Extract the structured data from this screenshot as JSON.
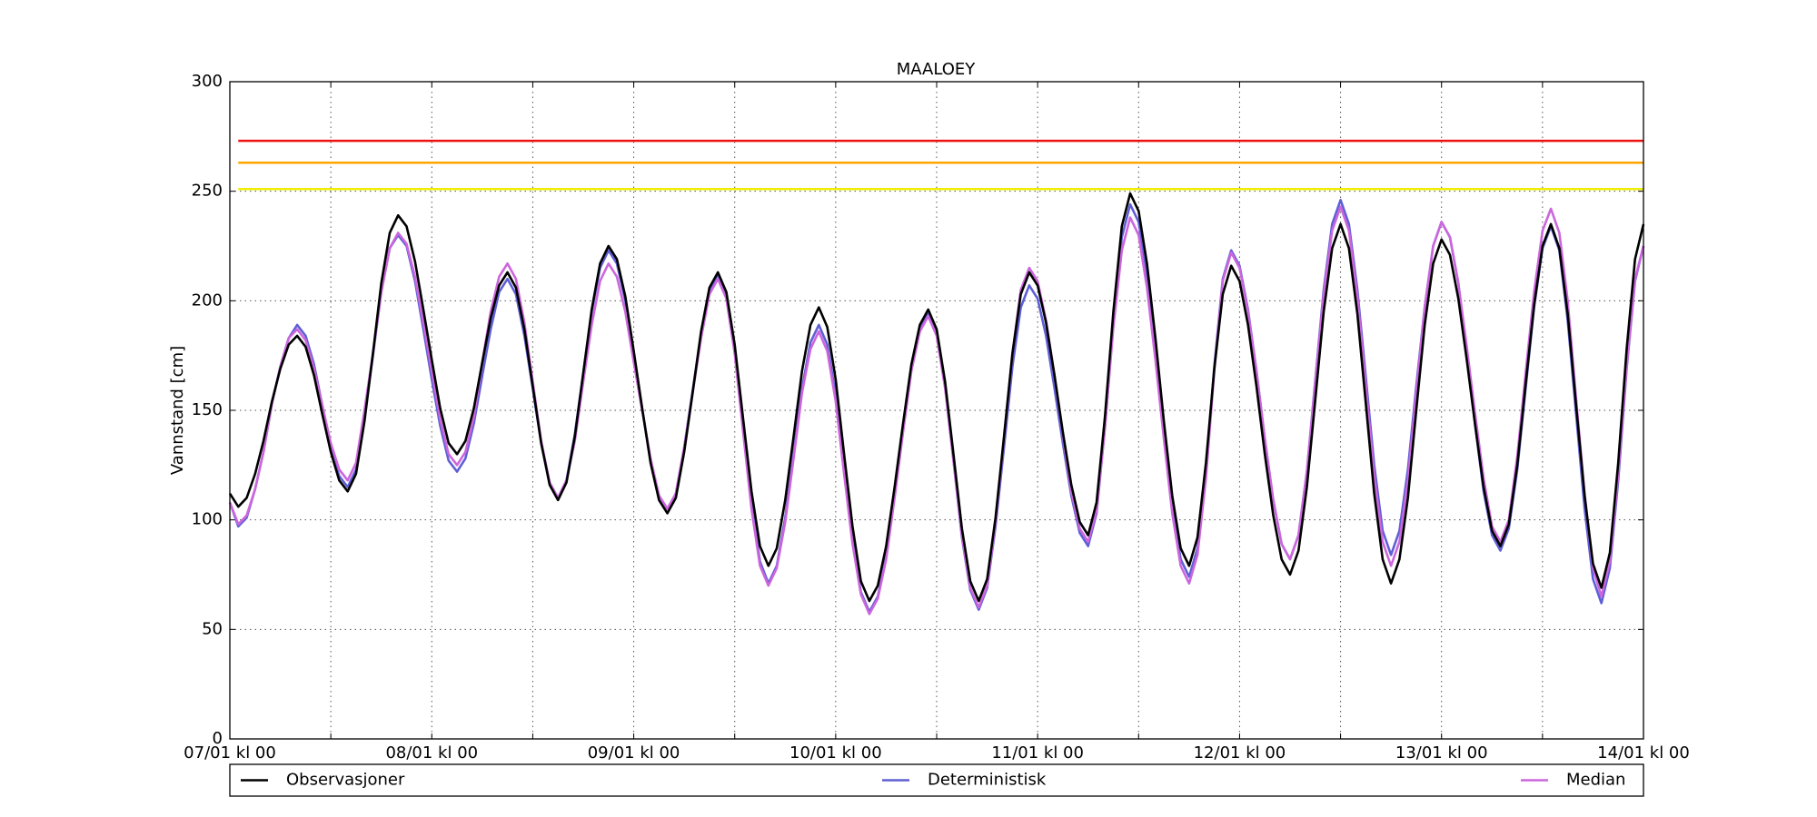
{
  "chart_data": {
    "type": "line",
    "title": "MAALOEY",
    "y_label": "Vannstand [cm]",
    "x": [
      0,
      1,
      2,
      3,
      4,
      5,
      6,
      7,
      8,
      9,
      10,
      11,
      12,
      13,
      14,
      15,
      16,
      17,
      18,
      19,
      20,
      21,
      22,
      23,
      24,
      25,
      26,
      27,
      28,
      29,
      30,
      31,
      32,
      33,
      34,
      35,
      36,
      37,
      38,
      39,
      40,
      41,
      42,
      43,
      44,
      45,
      46,
      47,
      48,
      49,
      50,
      51,
      52,
      53,
      54,
      55,
      56,
      57,
      58,
      59,
      60,
      61,
      62,
      63,
      64,
      65,
      66,
      67,
      68,
      69,
      70,
      71,
      72,
      73,
      74,
      75,
      76,
      77,
      78,
      79,
      80,
      81,
      82,
      83,
      84,
      85,
      86,
      87,
      88,
      89,
      90,
      91,
      92,
      93,
      94,
      95,
      96,
      97,
      98,
      99,
      100,
      101,
      102,
      103,
      104,
      105,
      106,
      107,
      108,
      109,
      110,
      111,
      112,
      113,
      114,
      115,
      116,
      117,
      118,
      119,
      120,
      121,
      122,
      123,
      124,
      125,
      126,
      127,
      128,
      129,
      130,
      131,
      132,
      133,
      134,
      135,
      136,
      137,
      138,
      139,
      140,
      141,
      142,
      143,
      144,
      145,
      146,
      147,
      148,
      149,
      150,
      151,
      152,
      153,
      154,
      155,
      156,
      157,
      158,
      159,
      160,
      161,
      162,
      163,
      164,
      165,
      166,
      167,
      168
    ],
    "series": [
      {
        "name": "Observasjoner",
        "color": "#000000",
        "values": [
          112,
          106,
          110,
          121,
          136,
          154,
          169,
          180,
          184,
          179,
          166,
          148,
          131,
          118,
          113,
          121,
          145,
          176,
          208,
          231,
          239,
          234,
          218,
          196,
          173,
          151,
          135,
          130,
          136,
          151,
          172,
          192,
          207,
          213,
          206,
          187,
          161,
          135,
          116,
          109,
          117,
          138,
          167,
          196,
          217,
          225,
          219,
          202,
          177,
          151,
          126,
          109,
          103,
          110,
          131,
          158,
          186,
          206,
          213,
          204,
          180,
          146,
          113,
          88,
          79,
          87,
          109,
          138,
          168,
          189,
          197,
          188,
          164,
          130,
          97,
          72,
          63,
          70,
          88,
          115,
          144,
          171,
          189,
          196,
          187,
          163,
          130,
          96,
          72,
          63,
          73,
          101,
          138,
          176,
          203,
          213,
          207,
          190,
          166,
          140,
          116,
          99,
          93,
          108,
          147,
          195,
          234,
          249,
          241,
          217,
          183,
          145,
          111,
          87,
          79,
          92,
          126,
          169,
          203,
          216,
          209,
          189,
          161,
          130,
          102,
          82,
          75,
          86,
          115,
          155,
          195,
          224,
          235,
          224,
          194,
          153,
          112,
          82,
          71,
          82,
          110,
          150,
          189,
          217,
          228,
          221,
          201,
          173,
          143,
          115,
          95,
          88,
          98,
          125,
          162,
          198,
          225,
          235,
          224,
          194,
          152,
          111,
          80,
          69,
          85,
          126,
          178,
          219,
          235
        ]
      },
      {
        "name": "Deterministisk",
        "color": "#5f5fd6",
        "values": [
          108,
          97,
          101,
          114,
          131,
          153,
          170,
          183,
          189,
          184,
          171,
          152,
          133,
          120,
          115,
          123,
          147,
          175,
          204,
          224,
          230,
          225,
          209,
          187,
          164,
          143,
          127,
          122,
          128,
          144,
          166,
          187,
          204,
          210,
          203,
          184,
          160,
          135,
          117,
          110,
          118,
          139,
          167,
          195,
          215,
          223,
          217,
          200,
          176,
          151,
          127,
          111,
          105,
          112,
          133,
          159,
          185,
          205,
          212,
          203,
          178,
          142,
          108,
          81,
          71,
          79,
          101,
          130,
          160,
          181,
          189,
          180,
          157,
          123,
          91,
          67,
          58,
          65,
          83,
          111,
          141,
          169,
          187,
          194,
          185,
          161,
          127,
          92,
          68,
          59,
          69,
          97,
          133,
          170,
          197,
          207,
          201,
          184,
          160,
          135,
          111,
          94,
          88,
          103,
          142,
          190,
          229,
          244,
          236,
          212,
          178,
          140,
          106,
          82,
          74,
          87,
          122,
          170,
          210,
          223,
          216,
          196,
          168,
          137,
          109,
          89,
          82,
          93,
          122,
          164,
          205,
          235,
          246,
          235,
          205,
          165,
          125,
          95,
          84,
          95,
          123,
          161,
          197,
          225,
          236,
          229,
          208,
          177,
          143,
          113,
          93,
          86,
          96,
          123,
          160,
          197,
          224,
          234,
          223,
          191,
          148,
          105,
          73,
          62,
          78,
          118,
          169,
          209,
          225
        ]
      },
      {
        "name": "Median",
        "color": "#cc66dd",
        "values": [
          108,
          98,
          102,
          114,
          131,
          153,
          170,
          183,
          187,
          182,
          169,
          152,
          135,
          123,
          118,
          126,
          150,
          176,
          204,
          224,
          231,
          226,
          211,
          190,
          168,
          146,
          130,
          125,
          131,
          147,
          172,
          195,
          211,
          217,
          210,
          190,
          163,
          136,
          117,
          110,
          118,
          136,
          163,
          189,
          209,
          217,
          211,
          195,
          172,
          150,
          128,
          111,
          105,
          112,
          133,
          158,
          183,
          203,
          210,
          201,
          176,
          140,
          105,
          79,
          70,
          78,
          99,
          128,
          158,
          178,
          186,
          177,
          154,
          121,
          89,
          66,
          57,
          64,
          82,
          110,
          140,
          168,
          186,
          193,
          184,
          160,
          127,
          93,
          69,
          60,
          70,
          99,
          137,
          176,
          205,
          215,
          209,
          191,
          166,
          139,
          113,
          96,
          90,
          104,
          142,
          188,
          223,
          238,
          230,
          206,
          173,
          137,
          103,
          79,
          71,
          84,
          119,
          168,
          209,
          222,
          215,
          195,
          168,
          137,
          109,
          89,
          82,
          93,
          122,
          163,
          203,
          232,
          243,
          232,
          202,
          161,
          120,
          90,
          79,
          90,
          118,
          158,
          197,
          225,
          236,
          229,
          208,
          179,
          148,
          119,
          97,
          90,
          100,
          129,
          167,
          204,
          232,
          242,
          231,
          200,
          155,
          112,
          78,
          65,
          81,
          121,
          170,
          210,
          225
        ]
      }
    ],
    "hlines": [
      {
        "value": 273,
        "color": "#ee1111"
      },
      {
        "value": 263,
        "color": "#ffa500"
      },
      {
        "value": 251,
        "color": "#eeee00"
      }
    ],
    "xlim": [
      0,
      168
    ],
    "xticks": [
      {
        "value": 0,
        "label": "07/01 kl 00"
      },
      {
        "value": 12
      },
      {
        "value": 24,
        "label": "08/01 kl 00"
      },
      {
        "value": 36
      },
      {
        "value": 48,
        "label": "09/01 kl 00"
      },
      {
        "value": 60
      },
      {
        "value": 72,
        "label": "10/01 kl 00"
      },
      {
        "value": 84
      },
      {
        "value": 96,
        "label": "11/01 kl 00"
      },
      {
        "value": 108
      },
      {
        "value": 120,
        "label": "12/01 kl 00"
      },
      {
        "value": 132
      },
      {
        "value": 144,
        "label": "13/01 kl 00"
      },
      {
        "value": 156
      },
      {
        "value": 168,
        "label": "14/01 kl 00"
      }
    ],
    "ylim": [
      0,
      300
    ],
    "yticks": [
      0,
      50,
      100,
      150,
      200,
      250,
      300
    ],
    "grid": true,
    "legend": "below"
  }
}
